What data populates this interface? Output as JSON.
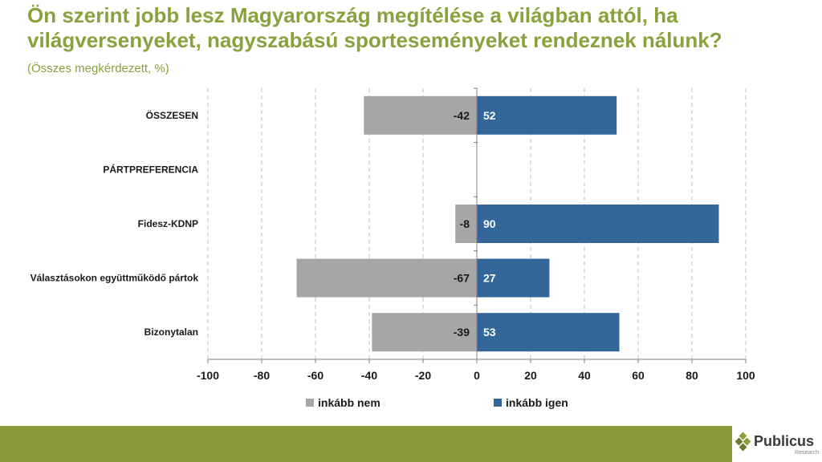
{
  "chart_data": {
    "type": "bar",
    "orientation": "horizontal-diverging",
    "title": "Ön szerint jobb lesz Magyarország megítélése a világban attól, ha világversenyeket, nagyszabású sporteseményeket rendeznek nálunk?",
    "subtitle": "(Összes megkérdezett, %)",
    "categories": [
      "ÖSSZESEN",
      "PÁRTPREFERENCIA",
      "Fidesz-KDNP",
      "Választásokon együttműködő pártok",
      "Bizonytalan"
    ],
    "series": [
      {
        "name": "inkább nem",
        "color": "#a6a6a6",
        "values": [
          -42,
          null,
          -8,
          -67,
          -39
        ]
      },
      {
        "name": "inkább igen",
        "color": "#336699",
        "values": [
          52,
          null,
          90,
          27,
          53
        ]
      }
    ],
    "xlim": [
      -100,
      100
    ],
    "xticks": [
      -100,
      -80,
      -60,
      -40,
      -20,
      0,
      20,
      40,
      60,
      80,
      100
    ],
    "grid": true,
    "legend_position": "bottom"
  },
  "footer": {
    "brand": "Publicus",
    "brand_sub": "Research",
    "bar_color": "#8d9a3c"
  }
}
